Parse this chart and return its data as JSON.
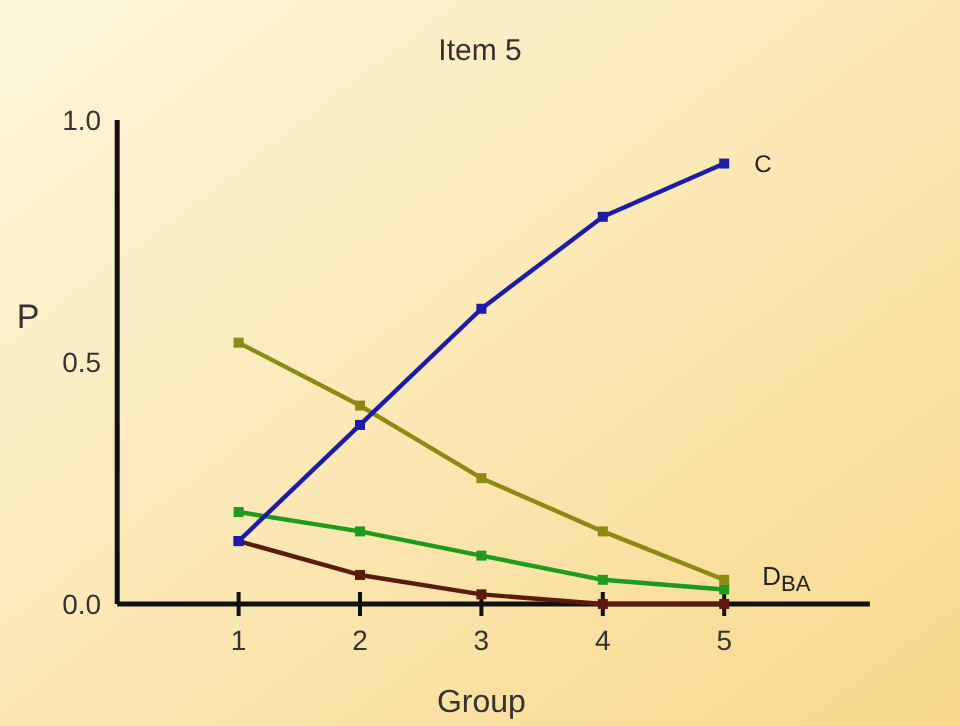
{
  "chart_data": {
    "type": "line",
    "title": "Item 5",
    "xlabel": "Group",
    "ylabel": "P",
    "x": [
      1,
      2,
      3,
      4,
      5
    ],
    "xlim": [
      0,
      6.2
    ],
    "xticks": [
      1,
      2,
      3,
      4,
      5
    ],
    "ylim": [
      0,
      1.0
    ],
    "yticks": [
      {
        "value": 0,
        "label": "0.0"
      },
      0.5,
      {
        "value": 1,
        "label": "1.0"
      }
    ],
    "series": [
      {
        "name": "C",
        "color": "#1c1ca8",
        "values": [
          0.13,
          0.37,
          0.61,
          0.8,
          0.91
        ]
      },
      {
        "color": "#8c8a14",
        "values": [
          0.54,
          0.41,
          0.26,
          0.15,
          0.05
        ]
      },
      {
        "color": "#1e9a1e",
        "values": [
          0.19,
          0.15,
          0.1,
          0.05,
          0.03
        ]
      },
      {
        "color": "#5c1a0c",
        "values": [
          0.13,
          0.06,
          0.02,
          0.0,
          0.0
        ]
      }
    ],
    "annotations": [
      {
        "text": "D$_{BA}$",
        "x": 5,
        "y": 0.03
      }
    ],
    "marker": "square",
    "line_style": "solid",
    "grid": false
  }
}
